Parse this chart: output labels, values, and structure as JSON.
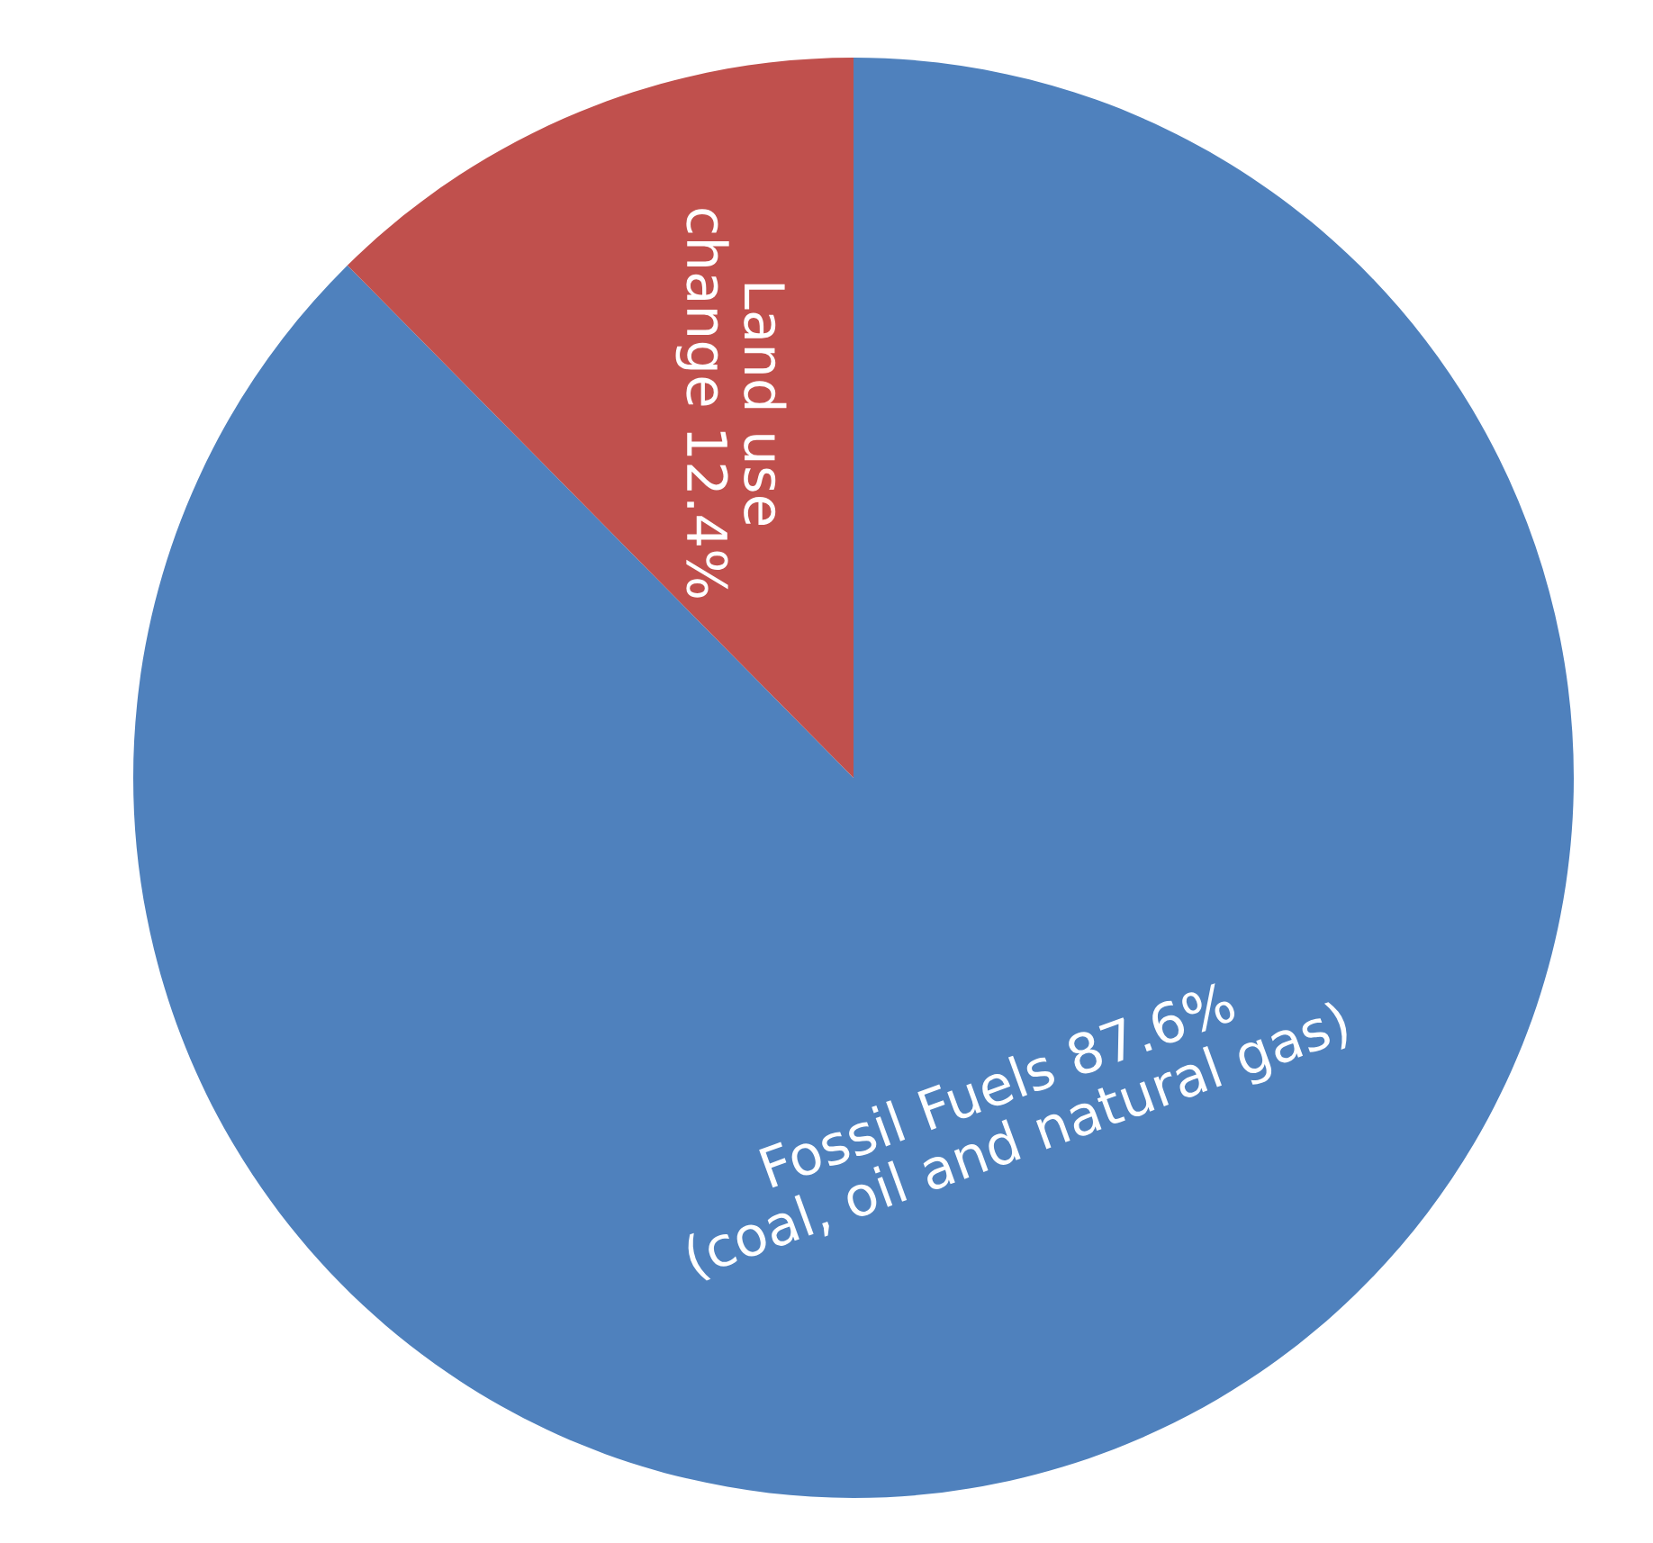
{
  "chart_data": {
    "type": "pie",
    "categories": [
      "Fossil Fuels 87.6%\n(coal, oil and natural gas)",
      "Land use\nchange 12.4%"
    ],
    "values": [
      87.6,
      12.4
    ],
    "colors": [
      "#4f81bd",
      "#c0504d"
    ]
  }
}
